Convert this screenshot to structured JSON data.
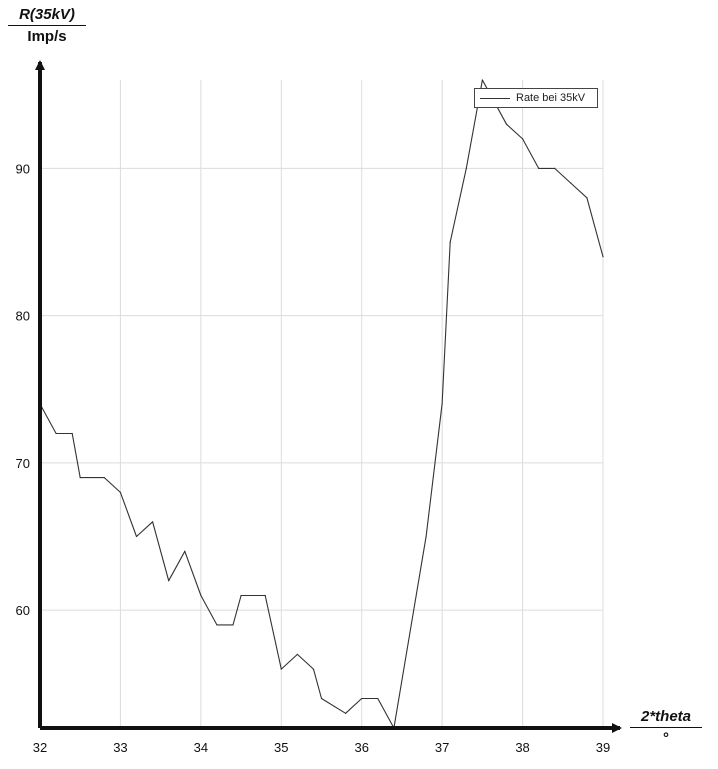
{
  "chart_data": {
    "type": "line",
    "ylabel": "R(35kV)",
    "yunit": "Imp/s",
    "xlabel": "2*theta",
    "xunit": "°",
    "xlim": [
      32,
      39
    ],
    "ylim": [
      52,
      96
    ],
    "xticks": [
      32,
      33,
      34,
      35,
      36,
      37,
      38,
      39
    ],
    "yticks": [
      60,
      70,
      80,
      90
    ],
    "grid": true,
    "legend_position": "top-right",
    "series": [
      {
        "name": "Rate bei 35kV",
        "color": "#333333",
        "x": [
          32.0,
          32.2,
          32.4,
          32.5,
          32.8,
          33.0,
          33.2,
          33.4,
          33.6,
          33.8,
          34.0,
          34.2,
          34.4,
          34.5,
          34.8,
          35.0,
          35.2,
          35.4,
          35.5,
          35.8,
          36.0,
          36.2,
          36.4,
          36.8,
          37.0,
          37.1,
          37.3,
          37.5,
          37.6,
          37.8,
          38.0,
          38.2,
          38.4,
          38.6,
          38.8,
          39.0
        ],
        "y": [
          74,
          72,
          72,
          69,
          69,
          68,
          65,
          66,
          62,
          64,
          61,
          59,
          59,
          61,
          61,
          56,
          57,
          56,
          54,
          53,
          54,
          54,
          52,
          65,
          74,
          85,
          90,
          96,
          95,
          93,
          92,
          90,
          90,
          89,
          88,
          84
        ]
      }
    ]
  }
}
